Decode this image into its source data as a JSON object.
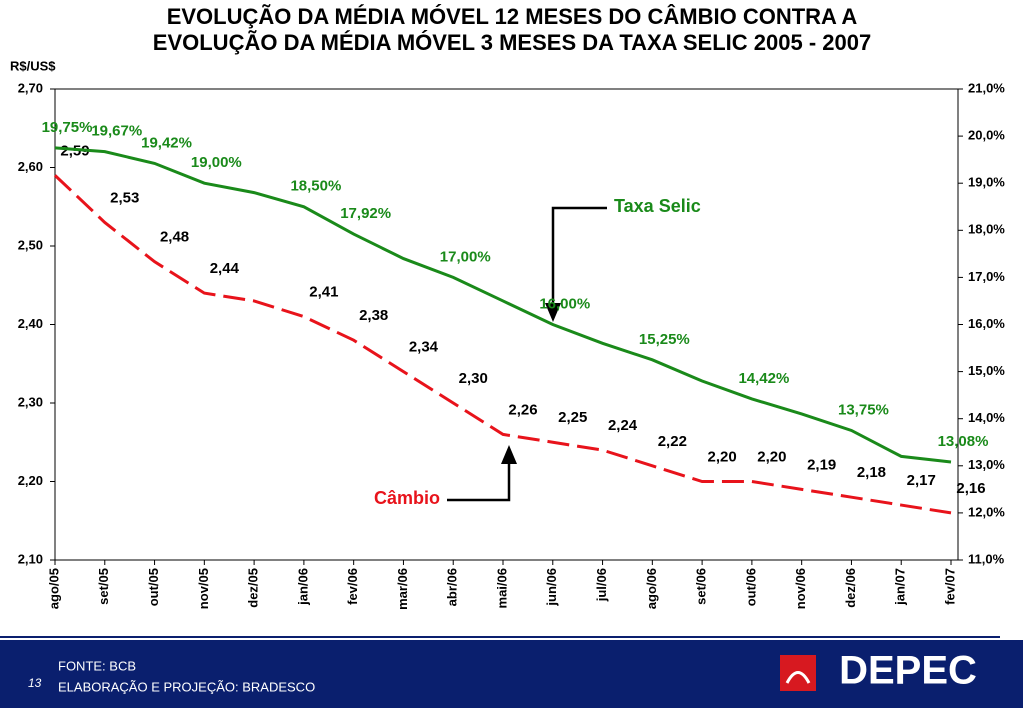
{
  "chart_data": {
    "type": "line",
    "title": [
      "EVOLUÇÃO DA MÉDIA MÓVEL 12 MESES DO CÂMBIO  CONTRA A",
      "EVOLUÇÃO DA MÉDIA MÓVEL 3 MESES DA TAXA SELIC 2005 - 2007"
    ],
    "y_label": "R$/US$",
    "categories": [
      "ago/05",
      "set/05",
      "out/05",
      "nov/05",
      "dez/05",
      "jan/06",
      "fev/06",
      "mar/06",
      "abr/06",
      "mai/06",
      "jun/06",
      "jul/06",
      "ago/06",
      "set/06",
      "out/06",
      "nov/06",
      "dez/06",
      "jan/07",
      "fev/07"
    ],
    "ylim": [
      2.1,
      2.7
    ],
    "yticks": [
      {
        "value": 2.1,
        "label": "2,10"
      },
      {
        "value": 2.2,
        "label": "2,20"
      },
      {
        "value": 2.3,
        "label": "2,30"
      },
      {
        "value": 2.4,
        "label": "2,40"
      },
      {
        "value": 2.5,
        "label": "2,50"
      },
      {
        "value": 2.6,
        "label": "2,60"
      },
      {
        "value": 2.7,
        "label": "2,70"
      }
    ],
    "y2lim": [
      11,
      21
    ],
    "y2ticks": [
      {
        "value": 11,
        "label": "11,0%"
      },
      {
        "value": 12,
        "label": "12,0%"
      },
      {
        "value": 13,
        "label": "13,0%"
      },
      {
        "value": 14,
        "label": "14,0%"
      },
      {
        "value": 15,
        "label": "15,0%"
      },
      {
        "value": 16,
        "label": "16,0%"
      },
      {
        "value": 17,
        "label": "17,0%"
      },
      {
        "value": 18,
        "label": "18,0%"
      },
      {
        "value": 19,
        "label": "19,0%"
      },
      {
        "value": 20,
        "label": "20,0%"
      },
      {
        "value": 21,
        "label": "21,0%"
      }
    ],
    "series": [
      {
        "name": "Câmbio",
        "color": "#e8131b",
        "dashed": true,
        "values": [
          2.59,
          2.53,
          2.48,
          2.44,
          2.43,
          2.41,
          2.38,
          2.34,
          2.3,
          2.26,
          2.25,
          2.24,
          2.22,
          2.2,
          2.2,
          2.19,
          2.18,
          2.17,
          2.16
        ],
        "value_labels": [
          "2,59",
          "2,53",
          "2,48",
          "2,44",
          null,
          "2,41",
          "2,38",
          "2,34",
          "2,30",
          "2,26",
          "2,25",
          "2,24",
          "2,22",
          "2,20",
          "2,20",
          "2,19",
          "2,18",
          "2,17",
          "2,16"
        ]
      },
      {
        "name": "Taxa Selic",
        "color": "#1a8a1a",
        "axis": "y2",
        "values": [
          19.75,
          19.67,
          19.42,
          19.0,
          18.8,
          18.5,
          17.92,
          17.4,
          17.0,
          16.5,
          16.0,
          15.6,
          15.25,
          14.8,
          14.42,
          14.1,
          13.75,
          13.2,
          13.08
        ],
        "value_labels": [
          "19,75%",
          "19,67%",
          "19,42%",
          "19,00%",
          null,
          "18,50%",
          "17,92%",
          null,
          "17,00%",
          null,
          "16,00%",
          null,
          "15,25%",
          null,
          "14,42%",
          null,
          "13,75%",
          null,
          "13,08%"
        ]
      }
    ],
    "footer": {
      "page": "13",
      "source": "FONTE: BCB",
      "credit": "ELABORAÇÃO E PROJEÇÃO: BRADESCO",
      "logo": "DEPEC"
    }
  }
}
